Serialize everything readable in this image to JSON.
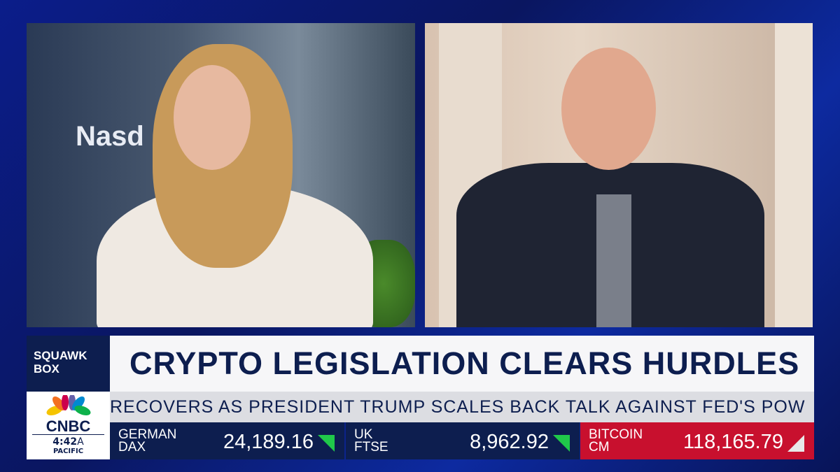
{
  "show": {
    "name_line1": "SQUAWK",
    "name_line2": "BOX"
  },
  "headline": "CRYPTO LEGISLATION CLEARS HURDLES",
  "ticker": "RECOVERS AS PRESIDENT TRUMP SCALES BACK TALK AGAINST FED'S POW",
  "network": {
    "name": "CNBC",
    "time": "4:42",
    "ampm": "A",
    "zone": "PACIFIC"
  },
  "background_sign": "Nasd",
  "markets": [
    {
      "line1": "GERMAN",
      "line2": "DAX",
      "value": "24,189.16",
      "direction": "down",
      "color": "#0d1e4f",
      "arrow_color": "#20c84a"
    },
    {
      "line1": "UK",
      "line2": "FTSE",
      "value": "8,962.92",
      "direction": "down",
      "color": "#0d1e4f",
      "arrow_color": "#20c84a"
    },
    {
      "line1": "BITCOIN",
      "line2": "CM",
      "value": "118,165.79",
      "direction": "up",
      "color": "#c8102e",
      "arrow_color": "#e8e8e8"
    }
  ]
}
